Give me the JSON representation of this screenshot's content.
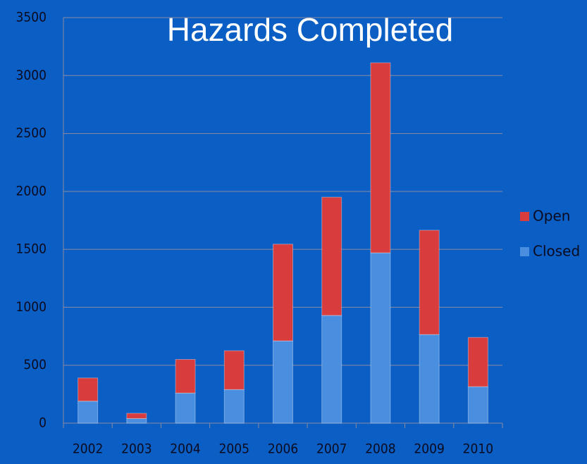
{
  "chart_data": {
    "type": "stacked_bar",
    "title": "Hazards Completed",
    "categories": [
      "2002",
      "2003",
      "2004",
      "2005",
      "2006",
      "2007",
      "2008",
      "2009",
      "2010"
    ],
    "series": [
      {
        "name": "Closed",
        "color": "#4a8fdf",
        "values": [
          190,
          40,
          260,
          290,
          710,
          930,
          1470,
          765,
          315
        ]
      },
      {
        "name": "Open",
        "color": "#d83c3c",
        "values": [
          200,
          45,
          290,
          335,
          835,
          1020,
          1640,
          900,
          425
        ]
      }
    ],
    "ylim": [
      0,
      3500
    ],
    "yticks": [
      0,
      500,
      1000,
      1500,
      2000,
      2500,
      3000,
      3500
    ],
    "grid": true,
    "legend": "right"
  }
}
